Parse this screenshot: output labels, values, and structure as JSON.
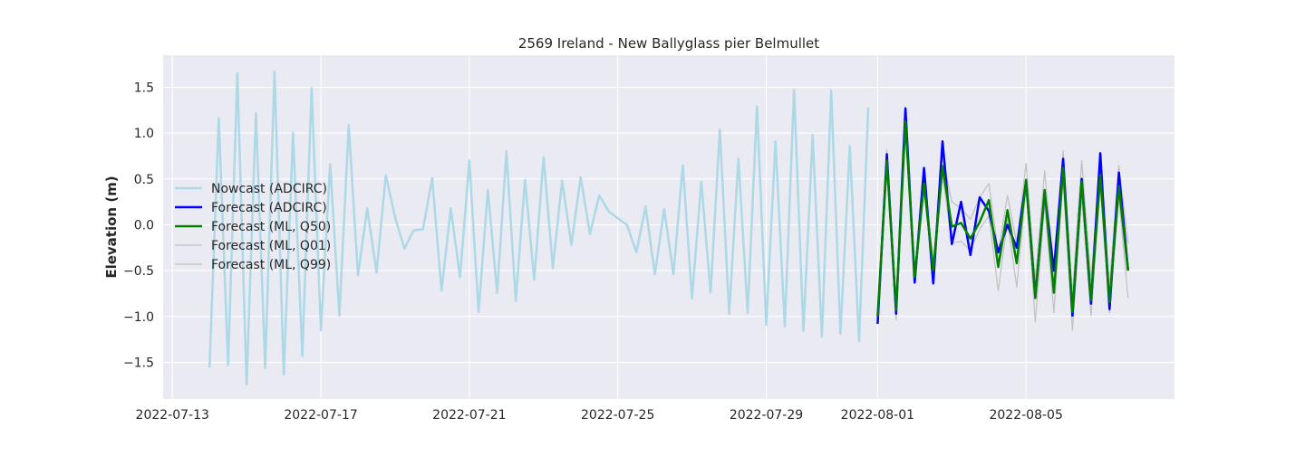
{
  "chart_data": {
    "type": "line",
    "title": "2569 Ireland - New Ballyglass pier Belmullet",
    "xlabel": "",
    "ylabel": "Elevation (m)",
    "xlim": [
      "2022-07-12T18:00",
      "2022-08-09T00:00"
    ],
    "ylim": [
      -1.9,
      1.85
    ],
    "yticks": [
      -1.5,
      -1.0,
      -0.5,
      0.0,
      0.5,
      1.0,
      1.5
    ],
    "ytick_labels": [
      "−1.5",
      "−1.0",
      "−0.5",
      "0.0",
      "0.5",
      "1.0",
      "1.5"
    ],
    "xticks": [
      "2022-07-13",
      "2022-07-17",
      "2022-07-21",
      "2022-07-25",
      "2022-07-29",
      "2022-08-01",
      "2022-08-05"
    ],
    "grid": true,
    "legend_position": "center-left",
    "colors": {
      "background": "#eaeaf2",
      "grid": "#ffffff",
      "nowcast": "#add8e6",
      "forecast": "#0000ff",
      "ml_q50": "#008000",
      "ml_q01": "#c0c0c0",
      "ml_q99": "#c0c0c0"
    },
    "series": [
      {
        "name": "Nowcast (ADCIRC)",
        "key": "nowcast",
        "x": [
          "2022-07-14T00:00",
          "2022-07-14T06:00",
          "2022-07-14T12:00",
          "2022-07-14T18:00",
          "2022-07-15T00:00",
          "2022-07-15T06:00",
          "2022-07-15T12:00",
          "2022-07-15T18:00",
          "2022-07-16T00:00",
          "2022-07-16T06:00",
          "2022-07-16T12:00",
          "2022-07-16T18:00",
          "2022-07-17T00:00",
          "2022-07-17T06:00",
          "2022-07-17T12:00",
          "2022-07-17T18:00",
          "2022-07-18T00:00",
          "2022-07-18T06:00",
          "2022-07-18T12:00",
          "2022-07-18T18:00",
          "2022-07-19T00:00",
          "2022-07-19T06:00",
          "2022-07-19T12:00",
          "2022-07-19T18:00",
          "2022-07-20T00:00",
          "2022-07-20T06:00",
          "2022-07-20T12:00",
          "2022-07-20T18:00",
          "2022-07-21T00:00",
          "2022-07-21T06:00",
          "2022-07-21T12:00",
          "2022-07-21T18:00",
          "2022-07-22T00:00",
          "2022-07-22T06:00",
          "2022-07-22T12:00",
          "2022-07-22T18:00",
          "2022-07-23T00:00",
          "2022-07-23T06:00",
          "2022-07-23T12:00",
          "2022-07-23T18:00",
          "2022-07-24T00:00",
          "2022-07-24T06:00",
          "2022-07-24T12:00",
          "2022-07-24T18:00",
          "2022-07-25T00:00",
          "2022-07-25T06:00",
          "2022-07-25T12:00",
          "2022-07-25T18:00",
          "2022-07-26T00:00",
          "2022-07-26T06:00",
          "2022-07-26T12:00",
          "2022-07-26T18:00",
          "2022-07-27T00:00",
          "2022-07-27T06:00",
          "2022-07-27T12:00",
          "2022-07-27T18:00",
          "2022-07-28T00:00",
          "2022-07-28T06:00",
          "2022-07-28T12:00",
          "2022-07-28T18:00",
          "2022-07-29T00:00",
          "2022-07-29T06:00",
          "2022-07-29T12:00",
          "2022-07-29T18:00",
          "2022-07-30T00:00",
          "2022-07-30T06:00",
          "2022-07-30T12:00",
          "2022-07-30T18:00",
          "2022-07-31T00:00",
          "2022-07-31T06:00",
          "2022-07-31T12:00",
          "2022-07-31T18:00"
        ],
        "y": [
          -1.56,
          1.16,
          -1.53,
          1.65,
          -1.74,
          1.22,
          -1.56,
          1.67,
          -1.63,
          1.0,
          -1.43,
          1.49,
          -1.15,
          0.66,
          -0.99,
          1.09,
          -0.55,
          0.18,
          -0.52,
          0.54,
          0.08,
          -0.26,
          -0.06,
          -0.05,
          0.51,
          -0.72,
          0.18,
          -0.57,
          0.7,
          -0.95,
          0.38,
          -0.74,
          0.8,
          -0.83,
          0.49,
          -0.6,
          0.74,
          -0.47,
          0.48,
          -0.22,
          0.52,
          -0.1,
          0.32,
          0.15,
          0.07,
          0.0,
          -0.3,
          0.2,
          -0.54,
          0.17,
          -0.54,
          0.65,
          -0.8,
          0.47,
          -0.74,
          1.04,
          -0.97,
          0.72,
          -0.96,
          1.29,
          -1.09,
          0.91,
          -1.11,
          1.47,
          -1.16,
          0.98,
          -1.22,
          1.46,
          -1.19,
          0.86,
          -1.27,
          1.28
        ]
      },
      {
        "name": "Forecast (ADCIRC)",
        "key": "forecast",
        "x": [
          "2022-08-01T00:00",
          "2022-08-01T06:00",
          "2022-08-01T12:00",
          "2022-08-01T18:00",
          "2022-08-02T00:00",
          "2022-08-02T06:00",
          "2022-08-02T12:00",
          "2022-08-02T18:00",
          "2022-08-03T00:00",
          "2022-08-03T06:00",
          "2022-08-03T12:00",
          "2022-08-03T18:00",
          "2022-08-04T00:00",
          "2022-08-04T06:00",
          "2022-08-04T12:00",
          "2022-08-04T18:00",
          "2022-08-05T00:00",
          "2022-08-05T06:00",
          "2022-08-05T12:00",
          "2022-08-05T18:00",
          "2022-08-06T00:00",
          "2022-08-06T06:00",
          "2022-08-06T12:00",
          "2022-08-06T18:00",
          "2022-08-07T00:00",
          "2022-08-07T06:00",
          "2022-08-07T12:00",
          "2022-08-07T18:00"
        ],
        "y": [
          -1.08,
          0.77,
          -0.97,
          1.27,
          -0.63,
          0.62,
          -0.64,
          0.91,
          -0.21,
          0.25,
          -0.33,
          0.3,
          0.15,
          -0.3,
          0.0,
          -0.25,
          0.48,
          -0.78,
          0.35,
          -0.5,
          0.72,
          -0.99,
          0.5,
          -0.86,
          0.78,
          -0.92,
          0.57,
          -0.5
        ]
      },
      {
        "name": "Forecast (ML, Q50)",
        "key": "ml_q50",
        "x": [
          "2022-08-01T00:00",
          "2022-08-01T06:00",
          "2022-08-01T12:00",
          "2022-08-01T18:00",
          "2022-08-02T00:00",
          "2022-08-02T06:00",
          "2022-08-02T12:00",
          "2022-08-02T18:00",
          "2022-08-03T00:00",
          "2022-08-03T06:00",
          "2022-08-03T12:00",
          "2022-08-03T18:00",
          "2022-08-04T00:00",
          "2022-08-04T06:00",
          "2022-08-04T12:00",
          "2022-08-04T18:00",
          "2022-08-05T00:00",
          "2022-08-05T06:00",
          "2022-08-05T12:00",
          "2022-08-05T18:00",
          "2022-08-06T00:00",
          "2022-08-06T06:00",
          "2022-08-06T12:00",
          "2022-08-06T18:00",
          "2022-08-07T00:00",
          "2022-08-07T06:00",
          "2022-08-07T12:00",
          "2022-08-07T18:00"
        ],
        "y": [
          -1.0,
          0.7,
          -0.93,
          1.13,
          -0.57,
          0.45,
          -0.5,
          0.64,
          -0.02,
          0.02,
          -0.15,
          0.03,
          0.27,
          -0.46,
          0.16,
          -0.42,
          0.49,
          -0.8,
          0.38,
          -0.74,
          0.62,
          -0.95,
          0.47,
          -0.82,
          0.54,
          -0.84,
          0.42,
          -0.5
        ]
      },
      {
        "name": "Forecast (ML, Q01)",
        "key": "ml_q01",
        "x": [
          "2022-08-01T00:00",
          "2022-08-01T06:00",
          "2022-08-01T12:00",
          "2022-08-01T18:00",
          "2022-08-02T00:00",
          "2022-08-02T06:00",
          "2022-08-02T12:00",
          "2022-08-02T18:00",
          "2022-08-03T00:00",
          "2022-08-03T06:00",
          "2022-08-03T12:00",
          "2022-08-03T18:00",
          "2022-08-04T00:00",
          "2022-08-04T06:00",
          "2022-08-04T12:00",
          "2022-08-04T18:00",
          "2022-08-05T00:00",
          "2022-08-05T06:00",
          "2022-08-05T12:00",
          "2022-08-05T18:00",
          "2022-08-06T00:00",
          "2022-08-06T06:00",
          "2022-08-06T12:00",
          "2022-08-06T18:00",
          "2022-08-07T00:00",
          "2022-08-07T06:00",
          "2022-08-07T12:00",
          "2022-08-07T18:00"
        ],
        "y": [
          -1.05,
          0.65,
          -1.04,
          1.05,
          -0.6,
          0.38,
          -0.56,
          0.55,
          -0.2,
          -0.18,
          -0.28,
          -0.05,
          0.1,
          -0.72,
          0.05,
          -0.68,
          0.4,
          -1.06,
          0.22,
          -0.96,
          0.5,
          -1.15,
          0.3,
          -0.99,
          0.42,
          -0.96,
          0.3,
          -0.8
        ]
      },
      {
        "name": "Forecast (ML, Q99)",
        "key": "ml_q99",
        "x": [
          "2022-08-01T00:00",
          "2022-08-01T06:00",
          "2022-08-01T12:00",
          "2022-08-01T18:00",
          "2022-08-02T00:00",
          "2022-08-02T06:00",
          "2022-08-02T12:00",
          "2022-08-02T18:00",
          "2022-08-03T00:00",
          "2022-08-03T06:00",
          "2022-08-03T12:00",
          "2022-08-03T18:00",
          "2022-08-04T00:00",
          "2022-08-04T06:00",
          "2022-08-04T12:00",
          "2022-08-04T18:00",
          "2022-08-05T00:00",
          "2022-08-05T06:00",
          "2022-08-05T12:00",
          "2022-08-05T18:00",
          "2022-08-06T00:00",
          "2022-08-06T06:00",
          "2022-08-06T12:00",
          "2022-08-06T18:00",
          "2022-08-07T00:00",
          "2022-08-07T06:00",
          "2022-08-07T12:00",
          "2022-08-07T18:00"
        ],
        "y": [
          -0.95,
          0.82,
          -0.85,
          1.2,
          -0.5,
          0.55,
          -0.4,
          0.75,
          0.25,
          0.18,
          0.06,
          0.3,
          0.45,
          -0.3,
          0.32,
          -0.2,
          0.67,
          -0.6,
          0.59,
          -0.5,
          0.81,
          -0.75,
          0.7,
          -0.6,
          0.72,
          -0.65,
          0.65,
          -0.2
        ]
      }
    ]
  }
}
